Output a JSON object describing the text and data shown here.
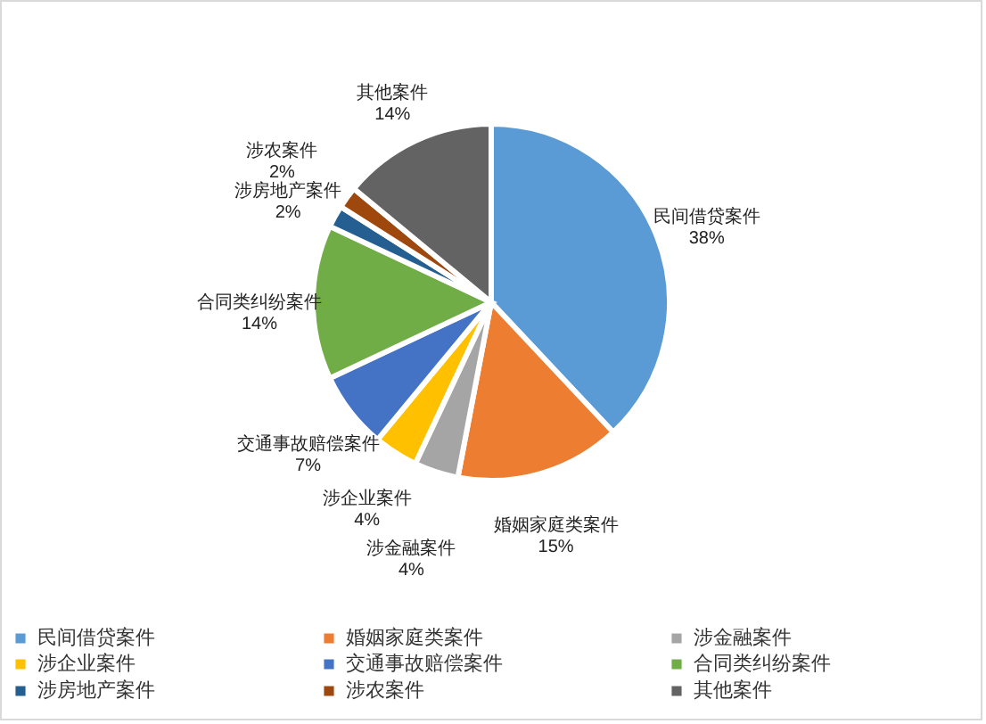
{
  "chart_data": {
    "type": "pie",
    "categories": [
      "民间借贷案件",
      "婚姻家庭类案件",
      "涉金融案件",
      "涉企业案件",
      "交通事故赔偿案件",
      "合同类纠纷案件",
      "涉房地产案件",
      "涉农案件",
      "其他案件"
    ],
    "values": [
      38,
      15,
      4,
      4,
      7,
      14,
      2,
      2,
      14
    ],
    "value_labels": [
      "38%",
      "15%",
      "4%",
      "4%",
      "7%",
      "14%",
      "2%",
      "2%",
      "14%"
    ],
    "colors": [
      "#5b9bd5",
      "#ed7d31",
      "#a5a5a5",
      "#ffc000",
      "#4472c4",
      "#70ad47",
      "#255e91",
      "#9e480e",
      "#636363"
    ],
    "legend": "bottom"
  }
}
